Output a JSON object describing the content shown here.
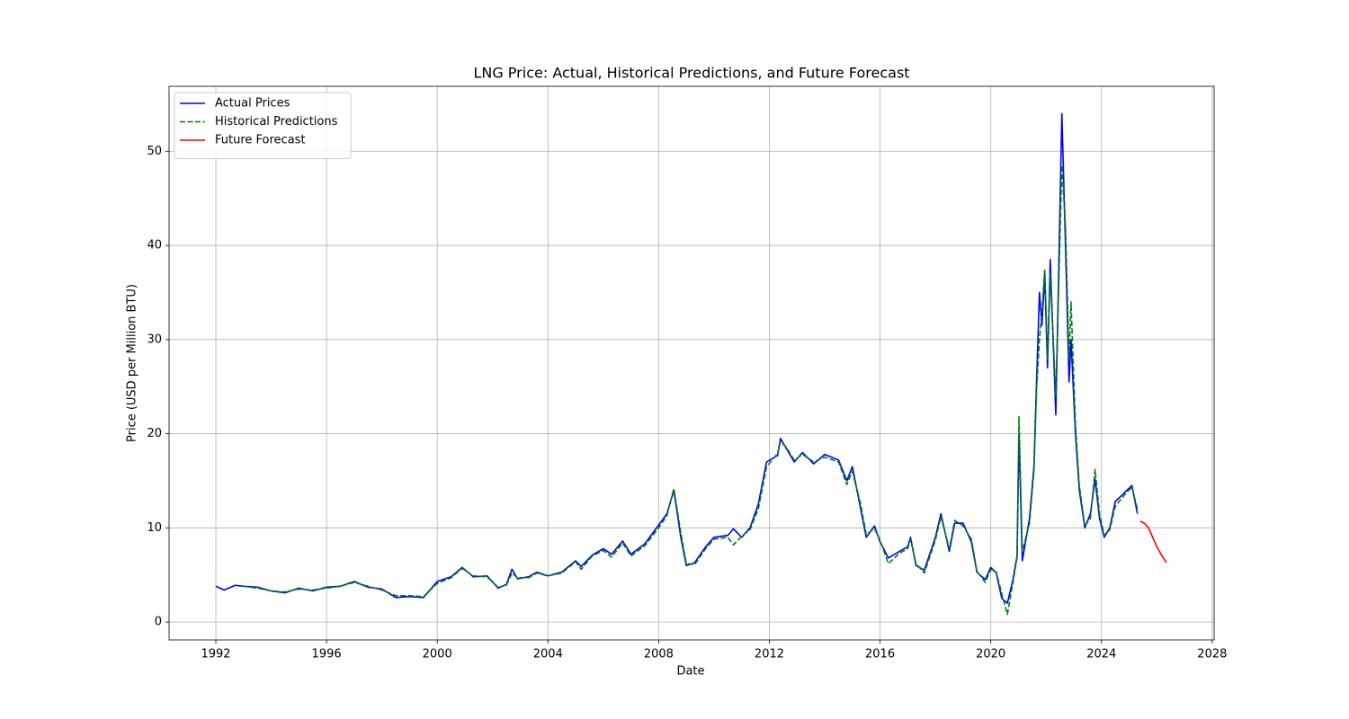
{
  "chart_data": {
    "type": "line",
    "title": "LNG Price: Actual, Historical Predictions, and Future Forecast",
    "x_label": "Date",
    "y_label": "Price (USD per Million BTU)",
    "xlim": [
      1990.31,
      2028.07
    ],
    "ylim": [
      -1.9,
      56.9
    ],
    "xticks": [
      1992,
      1996,
      2000,
      2004,
      2008,
      2012,
      2016,
      2020,
      2024,
      2028
    ],
    "yticks": [
      0,
      10,
      20,
      30,
      40,
      50
    ],
    "grid": true,
    "legend": "upper left",
    "series": [
      {
        "name": "Actual Prices",
        "color": "#0000ff",
        "style": "solid",
        "x": [
          1992.0,
          1992.3,
          1992.7,
          1993.0,
          1993.5,
          1994.0,
          1994.5,
          1995.0,
          1995.5,
          1996.0,
          1996.5,
          1997.0,
          1997.5,
          1998.0,
          1998.5,
          1999.0,
          1999.5,
          2000.0,
          2000.5,
          2000.9,
          2001.3,
          2001.8,
          2002.2,
          2002.5,
          2002.7,
          2002.9,
          2003.3,
          2003.6,
          2004.0,
          2004.5,
          2005.0,
          2005.2,
          2005.6,
          2006.0,
          2006.3,
          2006.7,
          2007.0,
          2007.5,
          2008.0,
          2008.3,
          2008.55,
          2008.8,
          2009.0,
          2009.3,
          2009.7,
          2010.0,
          2010.5,
          2010.7,
          2011.0,
          2011.3,
          2011.6,
          2011.9,
          2012.3,
          2012.4,
          2012.6,
          2012.9,
          2013.2,
          2013.6,
          2014.0,
          2014.5,
          2014.8,
          2015.0,
          2015.3,
          2015.5,
          2015.8,
          2016.0,
          2016.3,
          2016.7,
          2017.0,
          2017.1,
          2017.3,
          2017.6,
          2018.0,
          2018.2,
          2018.5,
          2018.7,
          2019.0,
          2019.3,
          2019.5,
          2019.8,
          2020.0,
          2020.2,
          2020.4,
          2020.6,
          2020.8,
          2020.95,
          2021.02,
          2021.14,
          2021.4,
          2021.56,
          2021.66,
          2021.76,
          2021.85,
          2021.95,
          2022.05,
          2022.15,
          2022.35,
          2022.57,
          2022.7,
          2022.83,
          2022.9,
          2023.06,
          2023.2,
          2023.4,
          2023.6,
          2023.77,
          2023.93,
          2024.1,
          2024.3,
          2024.5,
          2024.75,
          2024.92,
          2025.1,
          2025.3
        ],
        "values": [
          3.8,
          3.4,
          3.9,
          3.8,
          3.7,
          3.3,
          3.1,
          3.6,
          3.3,
          3.7,
          3.8,
          4.3,
          3.7,
          3.5,
          2.6,
          2.7,
          2.6,
          4.3,
          4.8,
          5.8,
          4.8,
          4.9,
          3.6,
          4.0,
          5.6,
          4.6,
          4.8,
          5.3,
          4.9,
          5.3,
          6.5,
          5.9,
          7.1,
          7.8,
          7.2,
          8.6,
          7.2,
          8.3,
          10.3,
          11.5,
          14.0,
          9.0,
          6.0,
          6.3,
          8.0,
          9.0,
          9.2,
          9.9,
          9.0,
          10.0,
          12.5,
          17.0,
          17.7,
          19.5,
          18.5,
          17.0,
          18.0,
          16.8,
          17.8,
          17.2,
          15.0,
          16.5,
          12.0,
          9.0,
          10.2,
          8.5,
          6.8,
          7.5,
          8.0,
          9.0,
          6.0,
          5.5,
          9.0,
          11.5,
          7.5,
          10.5,
          10.5,
          8.5,
          5.3,
          4.5,
          5.8,
          5.2,
          2.5,
          2.0,
          4.5,
          7.0,
          20.0,
          6.5,
          11.0,
          16.5,
          26.0,
          35.0,
          31.5,
          37.0,
          27.0,
          38.5,
          22.0,
          54.0,
          40.0,
          25.5,
          30.0,
          20.0,
          14.0,
          10.0,
          11.5,
          15.2,
          11.0,
          9.0,
          10.0,
          12.8,
          13.5,
          14.0,
          14.5,
          11.5
        ]
      },
      {
        "name": "Historical Predictions",
        "color": "#008000",
        "style": "dashed",
        "x": [
          1993.0,
          1993.5,
          1994.0,
          1994.5,
          1995.0,
          1995.5,
          1996.0,
          1996.5,
          1997.0,
          1997.5,
          1998.0,
          1998.5,
          1999.0,
          1999.5,
          2000.0,
          2000.5,
          2000.9,
          2001.3,
          2001.8,
          2002.2,
          2002.5,
          2002.7,
          2002.9,
          2003.3,
          2003.6,
          2004.0,
          2004.5,
          2005.0,
          2005.2,
          2005.6,
          2006.0,
          2006.3,
          2006.7,
          2007.0,
          2007.5,
          2008.0,
          2008.3,
          2008.55,
          2008.8,
          2009.0,
          2009.3,
          2009.7,
          2010.0,
          2010.5,
          2010.7,
          2011.0,
          2011.3,
          2011.6,
          2011.9,
          2012.3,
          2012.4,
          2012.6,
          2012.9,
          2013.2,
          2013.6,
          2014.0,
          2014.5,
          2014.8,
          2015.0,
          2015.3,
          2015.5,
          2015.8,
          2016.0,
          2016.3,
          2016.7,
          2017.0,
          2017.1,
          2017.3,
          2017.6,
          2018.0,
          2018.2,
          2018.5,
          2018.7,
          2019.0,
          2019.3,
          2019.5,
          2019.8,
          2020.0,
          2020.2,
          2020.4,
          2020.6,
          2020.8,
          2020.95,
          2021.02,
          2021.14,
          2021.4,
          2021.56,
          2021.66,
          2021.76,
          2021.85,
          2021.95,
          2022.05,
          2022.15,
          2022.35,
          2022.57,
          2022.7,
          2022.83,
          2022.9,
          2023.06,
          2023.2,
          2023.4,
          2023.6,
          2023.77,
          2023.93,
          2024.1,
          2024.3,
          2024.5,
          2024.75,
          2024.92,
          2025.1,
          2025.3
        ],
        "values": [
          3.8,
          3.6,
          3.3,
          3.2,
          3.5,
          3.4,
          3.6,
          3.8,
          4.2,
          3.8,
          3.4,
          2.8,
          2.8,
          2.7,
          4.1,
          4.7,
          5.7,
          4.9,
          4.8,
          3.7,
          3.9,
          5.2,
          4.7,
          4.7,
          5.2,
          4.9,
          5.2,
          6.4,
          5.6,
          7.0,
          7.6,
          6.9,
          8.4,
          7.0,
          8.1,
          10.0,
          11.3,
          14.2,
          9.5,
          6.2,
          6.1,
          7.8,
          8.8,
          9.0,
          8.2,
          9.1,
          9.8,
          12.0,
          16.5,
          17.9,
          19.2,
          18.6,
          17.2,
          17.8,
          17.0,
          17.5,
          17.0,
          14.6,
          16.0,
          12.5,
          9.3,
          9.9,
          8.7,
          6.2,
          7.3,
          7.8,
          8.8,
          6.2,
          5.2,
          8.7,
          11.2,
          7.8,
          10.8,
          10.2,
          8.8,
          5.4,
          4.2,
          5.6,
          5.3,
          3.0,
          0.8,
          4.2,
          6.8,
          21.8,
          7.5,
          10.5,
          16.0,
          25.0,
          30.0,
          33.0,
          37.5,
          28.0,
          37.0,
          24.0,
          48.5,
          42.0,
          28.0,
          34.0,
          21.0,
          14.5,
          10.2,
          11.0,
          16.2,
          11.5,
          9.2,
          9.8,
          12.3,
          13.2,
          13.8,
          14.3,
          12.0
        ]
      },
      {
        "name": "Future Forecast",
        "color": "#ff0000",
        "style": "solid",
        "x": [
          2025.4,
          2025.55,
          2025.7,
          2025.85,
          2026.0,
          2026.15,
          2026.35
        ],
        "values": [
          10.7,
          10.5,
          10.0,
          9.0,
          8.0,
          7.2,
          6.3
        ]
      }
    ]
  }
}
